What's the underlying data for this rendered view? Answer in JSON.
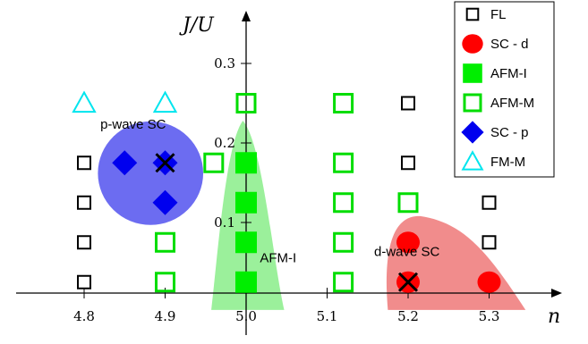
{
  "chart_data": {
    "type": "scatter",
    "title": "",
    "xlabel": "n",
    "ylabel": "J/U",
    "xlim": [
      4.72,
      5.42
    ],
    "ylim": [
      -0.01,
      0.33
    ],
    "x_ticks": [
      4.8,
      4.9,
      5.0,
      5.1,
      5.2,
      5.3
    ],
    "x_tick_labels": [
      "4.8",
      "4.9",
      "5.0",
      "5.1",
      "5.2",
      "5.3"
    ],
    "y_ticks": [
      0.1,
      0.2,
      0.3
    ],
    "y_tick_labels": [
      "0.1",
      "0.2",
      "0.3"
    ],
    "grid": false,
    "legend": "top-right",
    "series": [
      {
        "name": "FL",
        "marker": "square-open",
        "color": "#000000",
        "points": [
          [
            4.8,
            0.025
          ],
          [
            4.8,
            0.075
          ],
          [
            4.8,
            0.125
          ],
          [
            4.8,
            0.175
          ],
          [
            5.2,
            0.25
          ],
          [
            5.2,
            0.175
          ],
          [
            5.3,
            0.125
          ],
          [
            5.3,
            0.075
          ]
        ]
      },
      {
        "name": "SC - d",
        "marker": "circle-filled",
        "color": "#ff0000",
        "points": [
          [
            5.2,
            0.025
          ],
          [
            5.2,
            0.075
          ],
          [
            5.3,
            0.025
          ]
        ]
      },
      {
        "name": "AFM-I",
        "marker": "square-filled",
        "color": "#00ee00",
        "points": [
          [
            5.0,
            0.025
          ],
          [
            5.0,
            0.075
          ],
          [
            5.0,
            0.125
          ],
          [
            5.0,
            0.175
          ]
        ]
      },
      {
        "name": "AFM-M",
        "marker": "square-open",
        "color": "#00dd00",
        "points": [
          [
            4.9,
            0.025
          ],
          [
            4.9,
            0.075
          ],
          [
            4.96,
            0.175
          ],
          [
            5.0,
            0.25
          ],
          [
            5.12,
            0.025
          ],
          [
            5.12,
            0.075
          ],
          [
            5.12,
            0.125
          ],
          [
            5.12,
            0.175
          ],
          [
            5.12,
            0.25
          ],
          [
            5.2,
            0.125
          ]
        ]
      },
      {
        "name": "SC - p",
        "marker": "diamond-filled",
        "color": "#0000ee",
        "points": [
          [
            4.85,
            0.175
          ],
          [
            4.9,
            0.175
          ],
          [
            4.9,
            0.125
          ]
        ]
      },
      {
        "name": "FM-M",
        "marker": "triangle-open",
        "color": "#00e5ee",
        "points": [
          [
            4.8,
            0.25
          ],
          [
            4.9,
            0.25
          ]
        ]
      }
    ],
    "crosses": [
      [
        4.9,
        0.175
      ],
      [
        5.2,
        0.025
      ]
    ],
    "regions": [
      {
        "label": "p-wave SC",
        "color": "#5c5cf0",
        "shape": "circle",
        "center": [
          4.882,
          0.162
        ],
        "radius_x": 0.065
      },
      {
        "label": "AFM-I",
        "color": "#90ee90",
        "shape": "peak"
      },
      {
        "label": "d-wave SC",
        "color": "#f08080",
        "shape": "lobe"
      }
    ]
  }
}
